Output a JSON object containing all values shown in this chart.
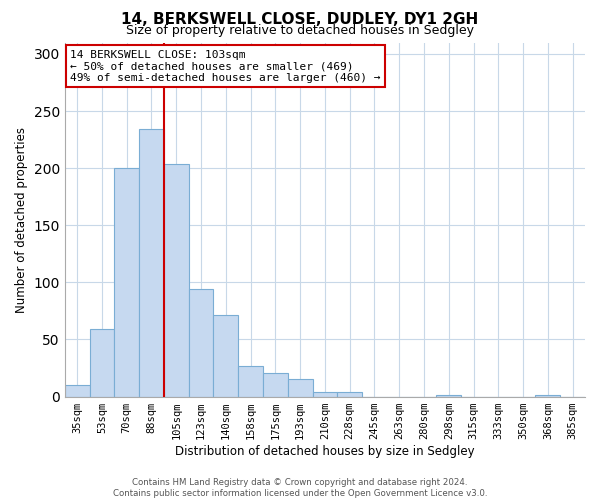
{
  "title": "14, BERKSWELL CLOSE, DUDLEY, DY1 2GH",
  "subtitle": "Size of property relative to detached houses in Sedgley",
  "xlabel": "Distribution of detached houses by size in Sedgley",
  "ylabel": "Number of detached properties",
  "bin_labels": [
    "35sqm",
    "53sqm",
    "70sqm",
    "88sqm",
    "105sqm",
    "123sqm",
    "140sqm",
    "158sqm",
    "175sqm",
    "193sqm",
    "210sqm",
    "228sqm",
    "245sqm",
    "263sqm",
    "280sqm",
    "298sqm",
    "315sqm",
    "333sqm",
    "350sqm",
    "368sqm",
    "385sqm"
  ],
  "bar_values": [
    10,
    59,
    200,
    234,
    204,
    94,
    71,
    27,
    21,
    15,
    4,
    4,
    0,
    0,
    0,
    1,
    0,
    0,
    0,
    1,
    0
  ],
  "bar_color": "#c6d9f0",
  "bar_edge_color": "#7aadd4",
  "marker_color": "#cc0000",
  "ylim": [
    0,
    310
  ],
  "yticks": [
    0,
    50,
    100,
    150,
    200,
    250,
    300
  ],
  "annotation_title": "14 BERKSWELL CLOSE: 103sqm",
  "annotation_line1": "← 50% of detached houses are smaller (469)",
  "annotation_line2": "49% of semi-detached houses are larger (460) →",
  "annotation_box_color": "#ffffff",
  "annotation_box_edge": "#cc0000",
  "footer1": "Contains HM Land Registry data © Crown copyright and database right 2024.",
  "footer2": "Contains public sector information licensed under the Open Government Licence v3.0.",
  "background_color": "#ffffff",
  "grid_color": "#c8d8e8"
}
